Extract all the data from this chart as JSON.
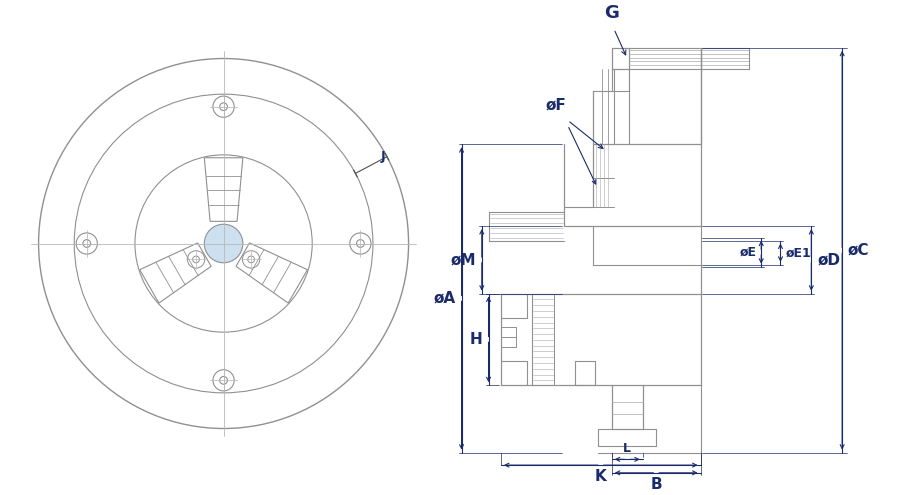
{
  "bg_color": "#ffffff",
  "line_color": "#909090",
  "dim_color": "#1a2b6b",
  "light_blue": "#cce0f0",
  "fig_width": 9.0,
  "fig_height": 4.95,
  "dpi": 100,
  "labels": {
    "A": "øA",
    "M": "øM",
    "C": "øC",
    "D": "øD",
    "E": "øE",
    "E1": "øE1",
    "F": "øF",
    "G": "G",
    "H": "H",
    "J": "J",
    "K": "K",
    "B": "B",
    "L": "L"
  }
}
